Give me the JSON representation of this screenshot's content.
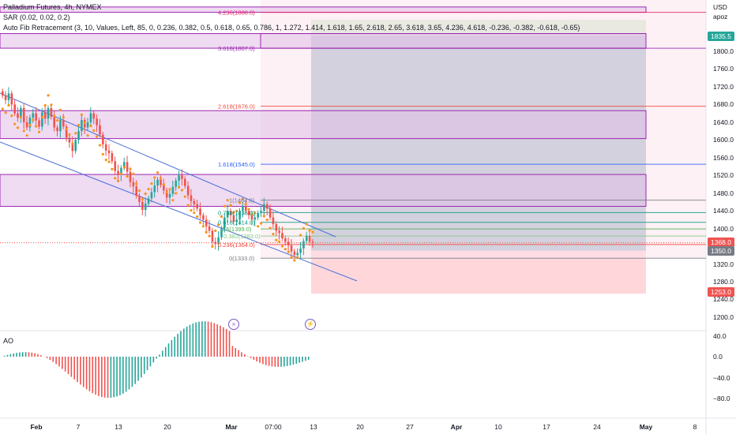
{
  "header": {
    "title": "Palladium Futures, 4h, NYMEX",
    "indicator_sar": "SAR (0.02, 0.02, 0.2)",
    "indicator_fib": "Auto Fib Retracement (3, 10, Values, Left, 85, 0, 0.236, 0.382, 0.5, 0.618, 0.65, 0.786, 1, 1.272, 1.414, 1.618, 1.65, 2.618, 2.65, 3.618, 3.65, 4.236, 4.618, -0.236, -0.382, -0.618, -0.65)"
  },
  "price_axis": {
    "currency": "USD",
    "user": "apoz",
    "ticks": [
      "1800.0",
      "1760.0",
      "1720.0",
      "1680.0",
      "1640.0",
      "1600.0",
      "1560.0",
      "1520.0",
      "1480.0",
      "1440.0",
      "1400.0",
      "1320.0",
      "1280.0",
      "1240.0",
      "1200.0"
    ],
    "badges": {
      "top": "1835.5",
      "last": "1368.0",
      "stop": "1350.0",
      "bottom": "1253.0"
    }
  },
  "time_axis": {
    "labels": [
      "Feb",
      "7",
      "13",
      "20",
      "Mar",
      "07:00",
      "13",
      "20",
      "27",
      "Apr",
      "10",
      "17",
      "24",
      "May",
      "8"
    ]
  },
  "fib_labels": {
    "f4236": "4.236(1888.0)",
    "f3618": "3.618(1807.0)",
    "f2618": "2.618(1676.0)",
    "f1618": "1.618(1545.0)",
    "f1": "1(1464.0)",
    "f0786": "0.786(1436.0)",
    "f0618": "0.618(1414.0)",
    "f05": "0.5(1399.0)",
    "f0382": "0.382(1383.0)",
    "f0236": "0.236(1364.0)",
    "f0": "0(1333.0)"
  },
  "oscillator": {
    "name": "AO",
    "ticks": [
      "40.0",
      "0.0",
      "−40.0",
      "−80.0"
    ]
  },
  "colors": {
    "up_candle": "#26a69a",
    "down_candle": "#ef5350",
    "sar": "#f7931a",
    "channel": "#4a6fd6",
    "zone_purple": "#9c27b0",
    "zone_fill": "#e1bee7",
    "target_fill": "#a5d6a7",
    "stop_fill": "#ffcdd2",
    "blue_box": "#5c6bc0",
    "last_price": "#ef5350",
    "stop_price": "#787b86",
    "top_badge": "#26a69a"
  },
  "chart_data": {
    "type": "candlestick",
    "title": "Palladium Futures, 4h, NYMEX",
    "ylim": [
      1185,
      1900
    ],
    "fib_levels": [
      {
        "ratio": 4.236,
        "price": 1888.0
      },
      {
        "ratio": 3.618,
        "price": 1807.0
      },
      {
        "ratio": 2.618,
        "price": 1676.0
      },
      {
        "ratio": 1.618,
        "price": 1545.0
      },
      {
        "ratio": 1,
        "price": 1464.0
      },
      {
        "ratio": 0.786,
        "price": 1436.0
      },
      {
        "ratio": 0.618,
        "price": 1414.0
      },
      {
        "ratio": 0.5,
        "price": 1399.0
      },
      {
        "ratio": 0.382,
        "price": 1383.0
      },
      {
        "ratio": 0.236,
        "price": 1364.0
      },
      {
        "ratio": 0,
        "price": 1333.0
      }
    ],
    "closes": [
      1700,
      1690,
      1705,
      1680,
      1660,
      1650,
      1672,
      1640,
      1628,
      1650,
      1660,
      1644,
      1630,
      1662,
      1648,
      1672,
      1652,
      1628,
      1620,
      1645,
      1630,
      1605,
      1594,
      1575,
      1600,
      1620,
      1645,
      1628,
      1640,
      1660,
      1648,
      1633,
      1612,
      1590,
      1576,
      1570,
      1552,
      1530,
      1522,
      1537,
      1550,
      1528,
      1505,
      1495,
      1474,
      1460,
      1442,
      1456,
      1468,
      1482,
      1497,
      1510,
      1498,
      1486,
      1470,
      1478,
      1494,
      1508,
      1520,
      1512,
      1496,
      1475,
      1462,
      1455,
      1445,
      1430,
      1420,
      1405,
      1395,
      1370,
      1365,
      1380,
      1400,
      1425,
      1440,
      1430,
      1415,
      1420,
      1440,
      1450,
      1440,
      1430,
      1420,
      1425,
      1435,
      1440,
      1455,
      1445,
      1425,
      1410,
      1395,
      1390,
      1378,
      1370,
      1362,
      1348,
      1340,
      1345,
      1355,
      1372,
      1383,
      1370,
      1368
    ]
  }
}
